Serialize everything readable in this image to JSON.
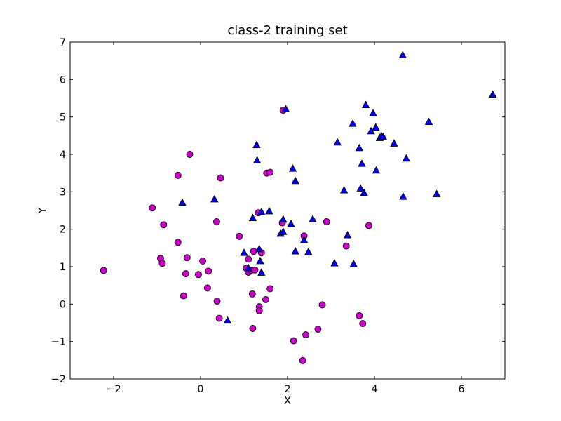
{
  "chart_data": {
    "type": "scatter",
    "title": "class-2 training set",
    "xlabel": "X",
    "ylabel": "Y",
    "xlim": [
      -3,
      7
    ],
    "ylim": [
      -2,
      7
    ],
    "xticks": [
      -2,
      0,
      2,
      4,
      6
    ],
    "xtick_labels": [
      "−2",
      "0",
      "2",
      "4",
      "6"
    ],
    "yticks": [
      -2,
      -1,
      0,
      1,
      2,
      3,
      4,
      5,
      6,
      7
    ],
    "ytick_labels": [
      "−2",
      "−1",
      "0",
      "1",
      "2",
      "3",
      "4",
      "5",
      "6",
      "7"
    ],
    "grid": false,
    "legend": "none",
    "series": [
      {
        "marker": "circle",
        "color": "#cc00cc",
        "points": [
          [
            -2.23,
            0.9
          ],
          [
            -1.11,
            2.57
          ],
          [
            -0.92,
            1.22
          ],
          [
            -0.88,
            1.09
          ],
          [
            -0.85,
            2.12
          ],
          [
            -0.52,
            3.44
          ],
          [
            -0.52,
            1.65
          ],
          [
            -0.39,
            0.22
          ],
          [
            -0.34,
            0.81
          ],
          [
            -0.31,
            1.24
          ],
          [
            -0.25,
            4.0
          ],
          [
            -0.05,
            0.79
          ],
          [
            0.05,
            1.15
          ],
          [
            0.16,
            0.43
          ],
          [
            0.18,
            0.88
          ],
          [
            0.37,
            2.2
          ],
          [
            0.38,
            0.08
          ],
          [
            0.43,
            -0.38
          ],
          [
            0.46,
            3.37
          ],
          [
            0.89,
            1.81
          ],
          [
            1.05,
            0.96
          ],
          [
            1.1,
            1.2
          ],
          [
            1.1,
            0.85
          ],
          [
            1.16,
            0.9
          ],
          [
            1.19,
            0.27
          ],
          [
            1.2,
            -0.65
          ],
          [
            1.22,
            1.41
          ],
          [
            1.25,
            0.91
          ],
          [
            1.33,
            2.44
          ],
          [
            1.35,
            -0.07
          ],
          [
            1.35,
            -0.18
          ],
          [
            1.4,
            1.37
          ],
          [
            1.5,
            0.12
          ],
          [
            1.52,
            3.5
          ],
          [
            1.6,
            3.52
          ],
          [
            1.6,
            0.41
          ],
          [
            1.88,
            2.17
          ],
          [
            1.9,
            5.18
          ],
          [
            2.14,
            -0.98
          ],
          [
            2.35,
            -1.51
          ],
          [
            2.38,
            1.82
          ],
          [
            2.42,
            -0.82
          ],
          [
            2.7,
            -0.67
          ],
          [
            2.8,
            -0.02
          ],
          [
            2.9,
            2.2
          ],
          [
            3.35,
            1.55
          ],
          [
            3.65,
            -0.31
          ],
          [
            3.73,
            -0.52
          ],
          [
            3.87,
            2.1
          ]
        ]
      },
      {
        "marker": "triangle",
        "color": "#0000ff",
        "points": [
          [
            -0.42,
            2.71
          ],
          [
            0.32,
            2.8
          ],
          [
            0.62,
            -0.44
          ],
          [
            1.0,
            1.37
          ],
          [
            1.1,
            0.96
          ],
          [
            1.2,
            2.3
          ],
          [
            1.29,
            4.25
          ],
          [
            1.3,
            3.84
          ],
          [
            1.35,
            1.47
          ],
          [
            1.37,
            1.15
          ],
          [
            1.4,
            2.46
          ],
          [
            1.4,
            0.84
          ],
          [
            1.58,
            2.48
          ],
          [
            1.84,
            1.88
          ],
          [
            1.9,
            2.26
          ],
          [
            1.9,
            1.93
          ],
          [
            1.96,
            5.21
          ],
          [
            2.08,
            2.14
          ],
          [
            2.12,
            3.62
          ],
          [
            2.18,
            3.29
          ],
          [
            2.18,
            1.41
          ],
          [
            2.38,
            1.71
          ],
          [
            2.48,
            1.39
          ],
          [
            2.58,
            2.27
          ],
          [
            3.08,
            1.09
          ],
          [
            3.15,
            4.32
          ],
          [
            3.3,
            3.04
          ],
          [
            3.38,
            1.84
          ],
          [
            3.5,
            4.82
          ],
          [
            3.52,
            1.07
          ],
          [
            3.65,
            4.17
          ],
          [
            3.68,
            3.09
          ],
          [
            3.71,
            3.75
          ],
          [
            3.76,
            2.97
          ],
          [
            3.8,
            5.32
          ],
          [
            3.92,
            4.62
          ],
          [
            3.97,
            5.1
          ],
          [
            4.03,
            4.72
          ],
          [
            4.04,
            3.57
          ],
          [
            4.12,
            4.44
          ],
          [
            4.16,
            4.49
          ],
          [
            4.2,
            4.47
          ],
          [
            4.45,
            4.29
          ],
          [
            4.65,
            6.65
          ],
          [
            4.66,
            2.87
          ],
          [
            4.73,
            3.89
          ],
          [
            5.25,
            4.87
          ],
          [
            5.43,
            2.94
          ],
          [
            6.72,
            5.6
          ]
        ]
      }
    ]
  }
}
